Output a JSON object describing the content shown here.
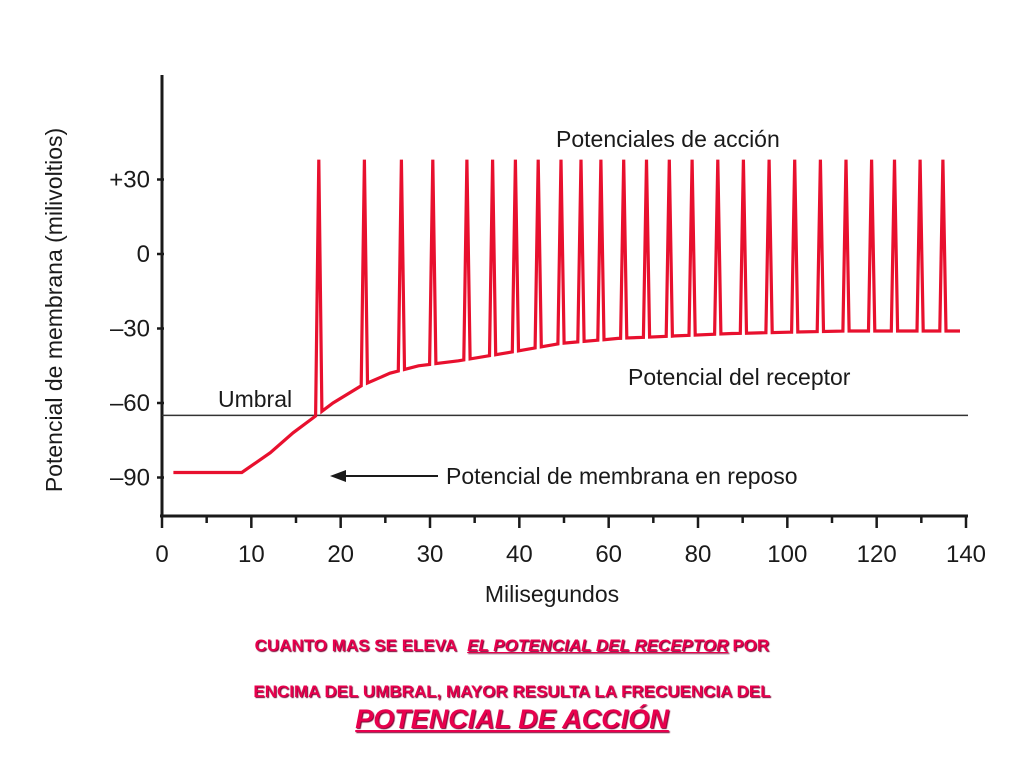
{
  "chart_data": {
    "type": "line",
    "xlabel": "Milisegundos",
    "ylabel": "Potencial de membrana (milivoltios)",
    "xlim": [
      0,
      140
    ],
    "ylim": [
      -100,
      50
    ],
    "xticks": [
      0,
      10,
      20,
      30,
      40,
      60,
      80,
      100,
      120,
      140
    ],
    "xtick_labels": [
      "0",
      "10",
      "20",
      "30",
      "40",
      "60",
      "80",
      "100",
      "120",
      "140"
    ],
    "yticks": [
      30,
      0,
      -30,
      -60,
      -90
    ],
    "ytick_labels": [
      "+30",
      "0",
      "–30",
      "–60",
      "–90"
    ],
    "threshold": {
      "label": "Umbral",
      "value": -65
    },
    "annotations": {
      "action_potentials": "Potenciales de acción",
      "receptor_potential": "Potencial del receptor",
      "resting_potential": "Potencial de membrana en reposo"
    },
    "series": [
      {
        "color": "#e8102e",
        "baseline": [
          [
            2,
            -88
          ],
          [
            14,
            -88
          ],
          [
            19,
            -80
          ],
          [
            23,
            -72
          ],
          [
            26.5,
            -66
          ],
          [
            30,
            -60
          ],
          [
            35,
            -53
          ],
          [
            40,
            -48
          ],
          [
            45,
            -45
          ],
          [
            52,
            -43
          ],
          [
            60,
            -40
          ],
          [
            70,
            -36
          ],
          [
            80,
            -34
          ],
          [
            90,
            -33
          ],
          [
            100,
            -32
          ],
          [
            110,
            -31.5
          ],
          [
            120,
            -31
          ],
          [
            130,
            -31
          ],
          [
            140,
            -31
          ]
        ],
        "spikes_x": [
          27.5,
          35.5,
          42,
          47.5,
          53.5,
          58,
          62,
          66,
          70,
          73.5,
          77,
          81,
          85,
          89,
          93,
          97.5,
          102,
          106.5,
          111,
          115.5,
          120,
          124.5,
          128.5,
          133,
          137
        ],
        "spike_peak": 38
      }
    ]
  },
  "caption": {
    "line1_part1": "CUANTO MAS SE ELEVA",
    "line1_part2": "EL POTENCIAL DEL RECEPTOR",
    "line1_part3": "POR",
    "line2": "ENCIMA DEL UMBRAL,  MAYOR RESULTA LA FRECUENCIA DEL",
    "line3": "POTENCIAL DE ACCIÓN"
  }
}
